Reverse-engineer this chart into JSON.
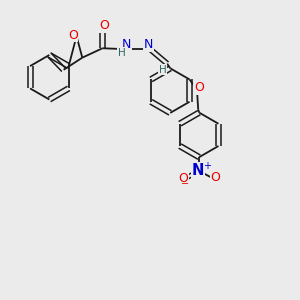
{
  "background_color": "#ebebeb",
  "bond_color": "#1a1a1a",
  "atom_colors": {
    "O": "#e60000",
    "N": "#0000cc",
    "H": "#336666"
  },
  "figsize": [
    3.0,
    3.0
  ],
  "dpi": 100
}
